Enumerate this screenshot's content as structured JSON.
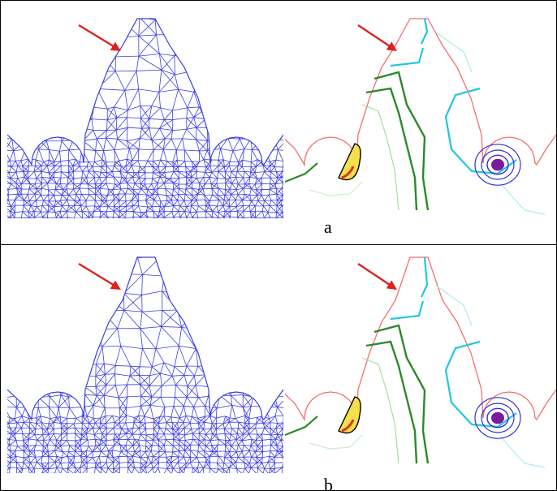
{
  "figure": {
    "captions": {
      "a": "a",
      "b": "b"
    }
  },
  "colors": {
    "mesh": "#3b3fe0",
    "outline": "#f07070",
    "arrow": "#e02020",
    "contour_green_dark": "#2a8a2a",
    "contour_green_light": "#9ee29e",
    "contour_green_pale": "#c8f0c8",
    "contour_cyan": "#20c8dc",
    "contour_cyan_pale": "#a8ecf0",
    "contour_yellow": "#f6e04a",
    "contour_red": "#e03020",
    "contour_blue": "#3030d0",
    "contour_purple": "#7a1aa0"
  },
  "panels": [
    {
      "id": "mesh-a",
      "kind": "fe-mesh",
      "refinement": "coarse-top"
    },
    {
      "id": "stress-a",
      "kind": "stress-contours"
    },
    {
      "id": "mesh-b",
      "kind": "fe-mesh",
      "refinement": "coarse-top"
    },
    {
      "id": "stress-b",
      "kind": "stress-contours"
    }
  ]
}
